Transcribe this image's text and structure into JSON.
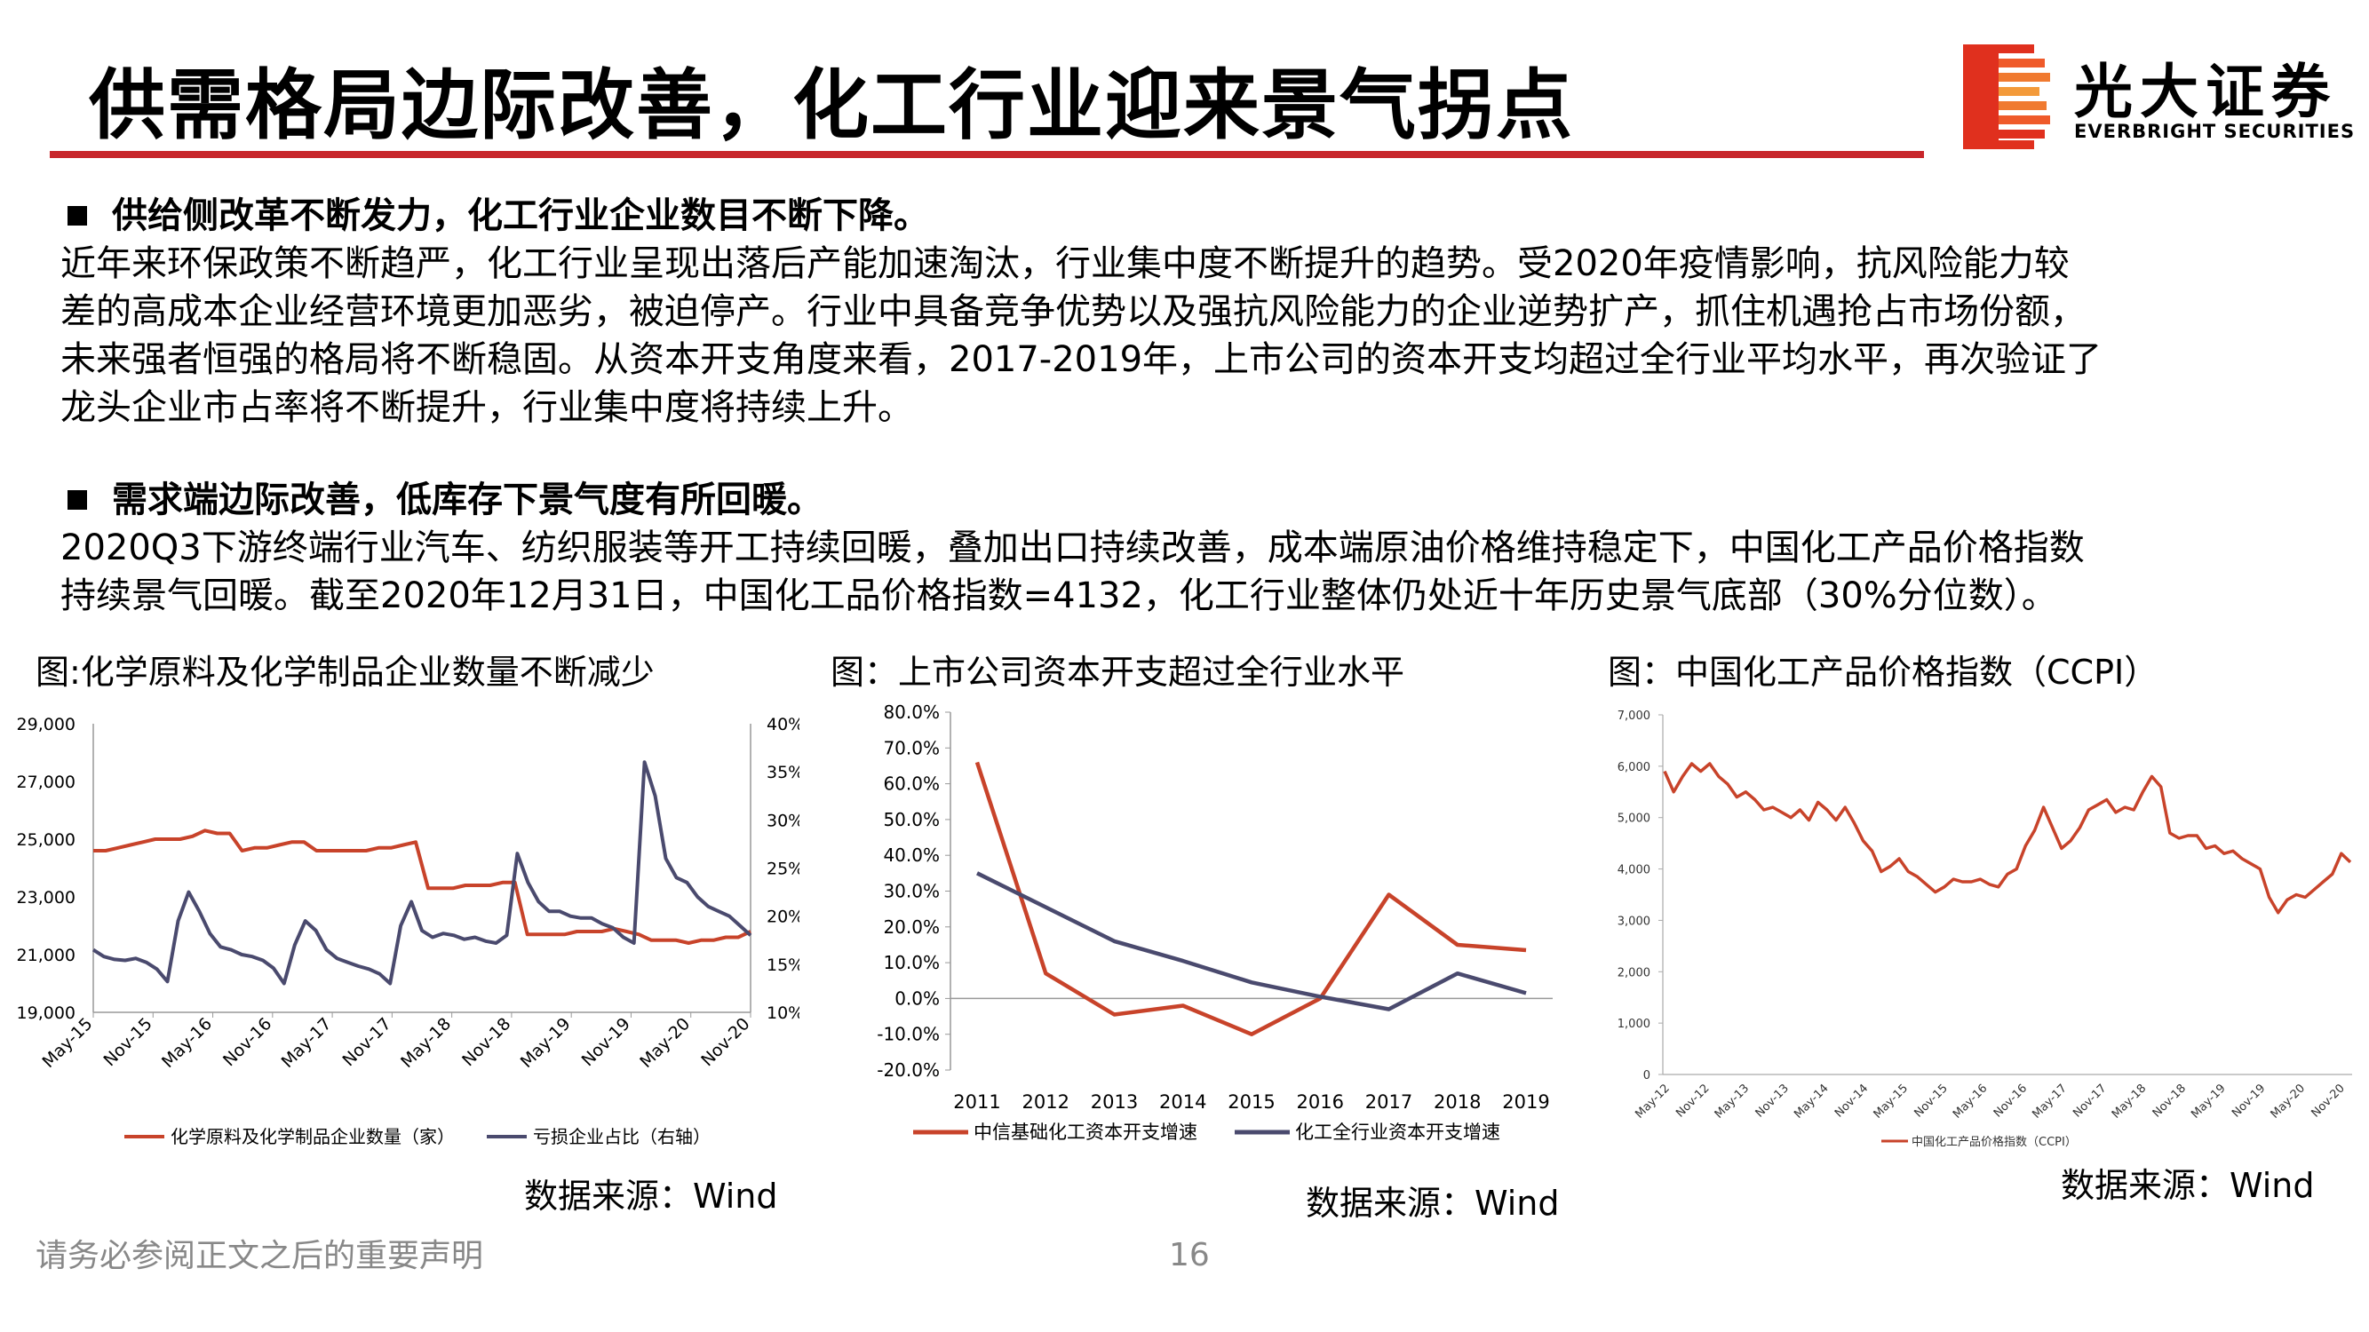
{
  "header": {
    "title": "供需格局边际改善，化工行业迎来景气拐点"
  },
  "logo": {
    "cn": "光大证券",
    "en": "EVERBRIGHT SECURITIES",
    "accent": "#c8262b"
  },
  "sections": [
    {
      "heading": "供给侧改革不断发力，化工行业企业数目不断下降。",
      "lines": [
        "近年来环保政策不断趋严，化工行业呈现出落后产能加速淘汰，行业集中度不断提升的趋势。受2020年疫情影响，抗风险能力较",
        "差的高成本企业经营环境更加恶劣，被迫停产。行业中具备竞争优势以及强抗风险能力的企业逆势扩产，抓住机遇抢占市场份额，",
        "未来强者恒强的格局将不断稳固。从资本开支角度来看，2017-2019年，上市公司的资本开支均超过全行业平均水平，再次验证了",
        "龙头企业市占率将不断提升，行业集中度将持续上升。"
      ]
    },
    {
      "heading": "需求端边际改善，低库存下景气度有所回暖。",
      "lines": [
        "2020Q3下游终端行业汽车、纺织服装等开工持续回暖，叠加出口持续改善，成本端原油价格维持稳定下，中国化工产品价格指数",
        "持续景气回暖。截至2020年12月31日，中国化工品价格指数=4132，化工行业整体仍处近十年历史景气底部（30%分位数）。"
      ]
    }
  ],
  "figures": [
    {
      "caption": "图:化学原料及化学制品企业数量不断减少",
      "source": "数据来源：Wind"
    },
    {
      "caption": "图：上市公司资本开支超过全行业水平",
      "source": "数据来源：Wind"
    },
    {
      "caption": "图：中国化工产品价格指数（CCPI）",
      "source": "数据来源：Wind"
    }
  ],
  "footer": {
    "disclaimer": "请务必参阅正文之后的重要声明",
    "page": "16"
  },
  "chart_data": [
    {
      "type": "line",
      "x_ticks": [
        "May-15",
        "Nov-15",
        "May-16",
        "Nov-16",
        "May-17",
        "Nov-17",
        "May-18",
        "Nov-18",
        "May-19",
        "Nov-19",
        "May-20",
        "Nov-20"
      ],
      "ylim": [
        19000,
        29000
      ],
      "y_ticks": [
        "19,000",
        "21,000",
        "23,000",
        "25,000",
        "27,000",
        "29,000"
      ],
      "y2lim": [
        10,
        40
      ],
      "y2_ticks": [
        "10%",
        "15%",
        "20%",
        "25%",
        "30%",
        "35%",
        "40%"
      ],
      "series": [
        {
          "name": "化学原料及化学制品企业数量（家）",
          "axis": "left",
          "color": "#c8432a",
          "values": [
            24600,
            24600,
            24700,
            24800,
            24900,
            25000,
            25000,
            25000,
            25100,
            25300,
            25200,
            25200,
            24600,
            24700,
            24700,
            24800,
            24900,
            24900,
            24600,
            24600,
            24600,
            24600,
            24600,
            24700,
            24700,
            24800,
            24900,
            23300,
            23300,
            23300,
            23400,
            23400,
            23400,
            23500,
            23500,
            21700,
            21700,
            21700,
            21700,
            21800,
            21800,
            21800,
            21900,
            21800,
            21700,
            21500,
            21500,
            21500,
            21400,
            21500,
            21500,
            21600,
            21600,
            21800
          ]
        },
        {
          "name": "亏损企业占比（右轴）",
          "axis": "right",
          "color": "#4a4a6e",
          "values": [
            16.5,
            15.8,
            15.5,
            15.4,
            15.6,
            15.2,
            14.5,
            13.2,
            19.5,
            22.5,
            20.5,
            18.2,
            16.8,
            16.5,
            16.0,
            15.8,
            15.4,
            14.6,
            13.0,
            17.0,
            19.5,
            18.5,
            16.5,
            15.6,
            15.2,
            14.8,
            14.5,
            14.0,
            13.0,
            19.0,
            21.5,
            18.5,
            17.8,
            18.2,
            18.0,
            17.6,
            17.8,
            17.4,
            17.2,
            18.0,
            26.5,
            23.5,
            21.5,
            20.5,
            20.5,
            20.0,
            19.8,
            19.8,
            19.2,
            18.8,
            17.8,
            17.2,
            36.0,
            32.5,
            26.0,
            24.0,
            23.5,
            22.0,
            21.0,
            20.5,
            20.0,
            19.0,
            18.0
          ]
        }
      ]
    },
    {
      "type": "line",
      "categories": [
        "2011",
        "2012",
        "2013",
        "2014",
        "2015",
        "2016",
        "2017",
        "2018",
        "2019"
      ],
      "ylim": [
        -20,
        80
      ],
      "y_ticks": [
        "-20.0%",
        "-10.0%",
        "0.0%",
        "10.0%",
        "20.0%",
        "30.0%",
        "40.0%",
        "50.0%",
        "60.0%",
        "70.0%",
        "80.0%"
      ],
      "series": [
        {
          "name": "中信基础化工资本开支增速",
          "color": "#c8432a",
          "values": [
            66,
            7,
            -4.5,
            -2,
            -10,
            0,
            29,
            15,
            13.5
          ]
        },
        {
          "name": "化工全行业资本开支增速",
          "color": "#4a4a6e",
          "values": [
            35,
            25.5,
            16,
            10.5,
            4.5,
            0.5,
            -3,
            7,
            1.5
          ]
        }
      ]
    },
    {
      "type": "line",
      "x_ticks": [
        "May-12",
        "Nov-12",
        "May-13",
        "Nov-13",
        "May-14",
        "Nov-14",
        "May-15",
        "Nov-15",
        "May-16",
        "Nov-16",
        "May-17",
        "Nov-17",
        "May-18",
        "Nov-18",
        "May-19",
        "Nov-19",
        "May-20",
        "Nov-20"
      ],
      "ylim": [
        0,
        7000
      ],
      "y_ticks": [
        "0",
        "1,000",
        "2,000",
        "3,000",
        "4,000",
        "5,000",
        "6,000",
        "7,000"
      ],
      "series": [
        {
          "name": "中国化工产品价格指数（CCPI）",
          "color": "#c8432a",
          "values": [
            5900,
            5500,
            5800,
            6050,
            5900,
            6050,
            5800,
            5650,
            5400,
            5500,
            5350,
            5150,
            5200,
            5100,
            5000,
            5150,
            4950,
            5300,
            5150,
            4950,
            5200,
            4900,
            4550,
            4350,
            3950,
            4050,
            4200,
            3950,
            3850,
            3700,
            3550,
            3650,
            3800,
            3750,
            3750,
            3800,
            3700,
            3650,
            3900,
            4000,
            4450,
            4750,
            5200,
            4800,
            4400,
            4550,
            4800,
            5150,
            5250,
            5350,
            5100,
            5200,
            5150,
            5500,
            5800,
            5600,
            4700,
            4600,
            4650,
            4650,
            4400,
            4450,
            4300,
            4350,
            4200,
            4100,
            4000,
            3450,
            3150,
            3400,
            3500,
            3450,
            3600,
            3750,
            3900,
            4300,
            4132
          ]
        }
      ]
    }
  ]
}
